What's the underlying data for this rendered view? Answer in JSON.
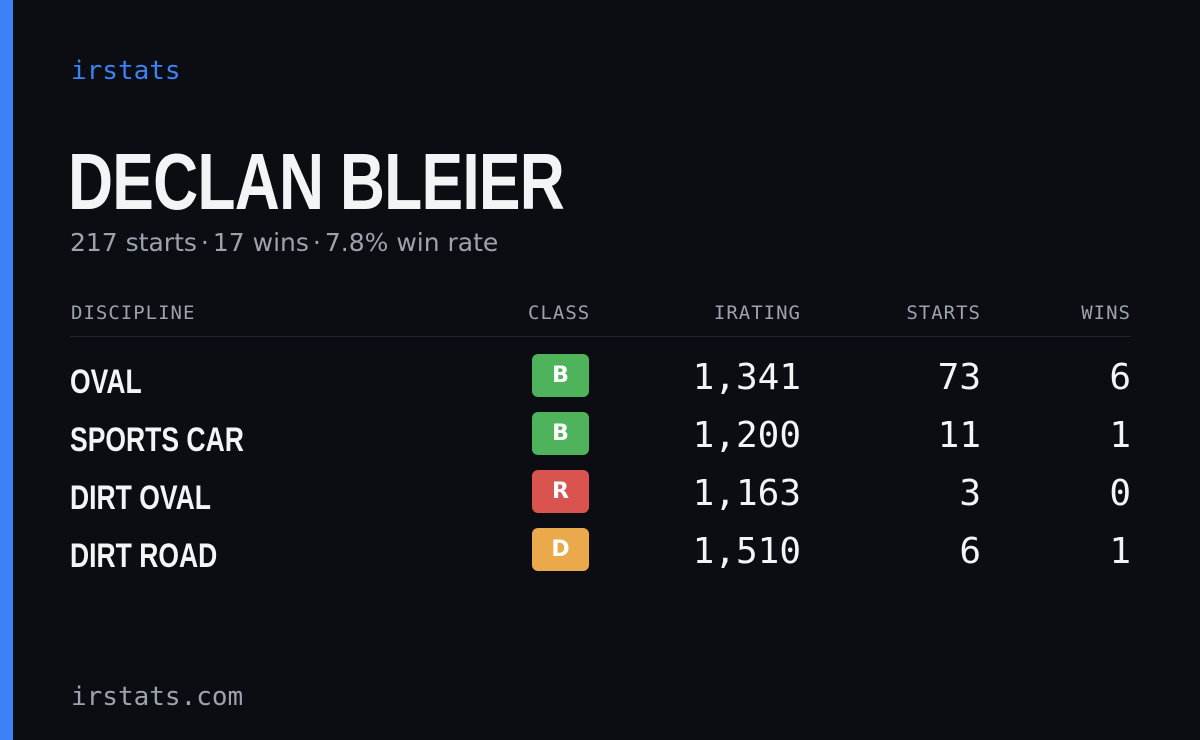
{
  "brand": "irstats",
  "driver": {
    "name": "DECLAN BLEIER",
    "starts": "217 starts",
    "wins": "17 wins",
    "win_rate": "7.8% win rate",
    "separator": "·"
  },
  "table": {
    "headers": {
      "discipline": "DISCIPLINE",
      "class": "CLASS",
      "irating": "IRATING",
      "starts": "STARTS",
      "wins": "WINS"
    },
    "rows": [
      {
        "discipline": "OVAL",
        "class": "B",
        "class_color": "#4fb35b",
        "irating": "1,341",
        "starts": "73",
        "wins": "6"
      },
      {
        "discipline": "SPORTS CAR",
        "class": "B",
        "class_color": "#4fb35b",
        "irating": "1,200",
        "starts": "11",
        "wins": "1"
      },
      {
        "discipline": "DIRT OVAL",
        "class": "R",
        "class_color": "#d9534f",
        "irating": "1,163",
        "starts": "3",
        "wins": "0"
      },
      {
        "discipline": "DIRT ROAD",
        "class": "D",
        "class_color": "#eaaa4c",
        "irating": "1,510",
        "starts": "6",
        "wins": "1"
      }
    ]
  },
  "footer": "irstats.com",
  "colors": {
    "accent": "#3b82f6",
    "background": "#0b0d13",
    "text": "#f3f4f6",
    "muted": "#9ca3af"
  }
}
